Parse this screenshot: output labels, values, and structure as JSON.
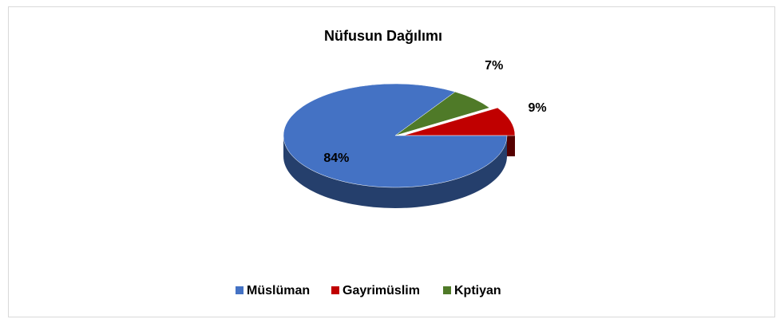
{
  "chart_data": {
    "type": "pie",
    "title": "Nüfusun Dağılımı",
    "categories": [
      "Müslüman",
      "Gayrimüslim",
      "Kptiyan"
    ],
    "values": [
      84,
      9,
      7
    ],
    "value_labels": [
      "84%",
      "9%",
      "7%"
    ],
    "colors": [
      "#4472c4",
      "#c00000",
      "#4f7a28"
    ],
    "legend": "bottom"
  }
}
